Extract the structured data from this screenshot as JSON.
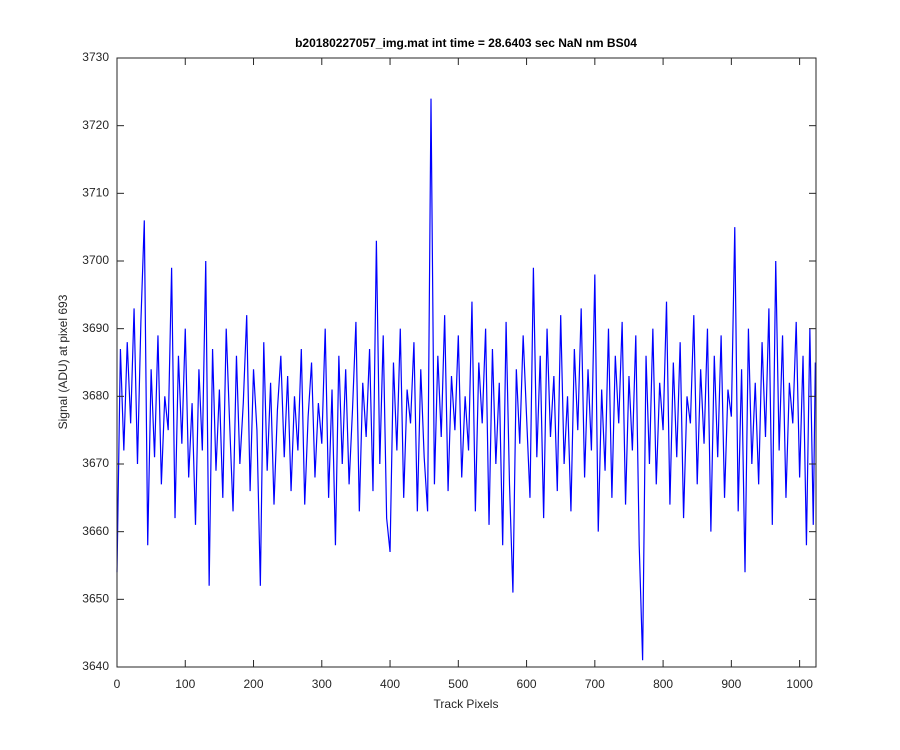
{
  "chart_data": {
    "type": "line",
    "title": "b20180227057_img.mat int time = 28.6403 sec  NaN nm BS04",
    "xlabel": "Track Pixels",
    "ylabel": "Signal (ADU) at pixel 693",
    "x": [
      0,
      5,
      10,
      15,
      20,
      25,
      30,
      35,
      40,
      45,
      50,
      55,
      60,
      65,
      70,
      75,
      80,
      85,
      90,
      95,
      100,
      105,
      110,
      115,
      120,
      125,
      130,
      135,
      140,
      145,
      150,
      155,
      160,
      165,
      170,
      175,
      180,
      185,
      190,
      195,
      200,
      205,
      210,
      215,
      220,
      225,
      230,
      235,
      240,
      245,
      250,
      255,
      260,
      265,
      270,
      275,
      280,
      285,
      290,
      295,
      300,
      305,
      310,
      315,
      320,
      325,
      330,
      335,
      340,
      345,
      350,
      355,
      360,
      365,
      370,
      375,
      380,
      385,
      390,
      395,
      400,
      405,
      410,
      415,
      420,
      425,
      430,
      435,
      440,
      445,
      450,
      455,
      460,
      465,
      470,
      475,
      480,
      485,
      490,
      495,
      500,
      505,
      510,
      515,
      520,
      525,
      530,
      535,
      540,
      545,
      550,
      555,
      560,
      565,
      570,
      575,
      580,
      585,
      590,
      595,
      600,
      605,
      610,
      615,
      620,
      625,
      630,
      635,
      640,
      645,
      650,
      655,
      660,
      665,
      670,
      675,
      680,
      685,
      690,
      695,
      700,
      705,
      710,
      715,
      720,
      725,
      730,
      735,
      740,
      745,
      750,
      755,
      760,
      765,
      770,
      775,
      780,
      785,
      790,
      795,
      800,
      805,
      810,
      815,
      820,
      825,
      830,
      835,
      840,
      845,
      850,
      855,
      860,
      865,
      870,
      875,
      880,
      885,
      890,
      895,
      900,
      905,
      910,
      915,
      920,
      925,
      930,
      935,
      940,
      945,
      950,
      955,
      960,
      965,
      970,
      975,
      980,
      985,
      990,
      995,
      1000,
      1005,
      1010,
      1015,
      1020,
      1023
    ],
    "series": [
      {
        "name": "signal",
        "color": "#0000ff",
        "values": [
          3654,
          3687,
          3672,
          3688,
          3676,
          3693,
          3670,
          3691,
          3706,
          3658,
          3684,
          3671,
          3689,
          3667,
          3680,
          3675,
          3699,
          3662,
          3686,
          3673,
          3690,
          3668,
          3679,
          3661,
          3684,
          3672,
          3700,
          3652,
          3687,
          3669,
          3681,
          3665,
          3690,
          3676,
          3663,
          3686,
          3670,
          3679,
          3692,
          3666,
          3684,
          3675,
          3652,
          3688,
          3669,
          3682,
          3664,
          3678,
          3686,
          3671,
          3683,
          3666,
          3680,
          3672,
          3687,
          3664,
          3677,
          3685,
          3668,
          3679,
          3673,
          3690,
          3665,
          3681,
          3658,
          3686,
          3670,
          3684,
          3667,
          3678,
          3691,
          3663,
          3682,
          3674,
          3687,
          3666,
          3703,
          3670,
          3689,
          3662,
          3657,
          3685,
          3672,
          3690,
          3665,
          3681,
          3676,
          3688,
          3663,
          3684,
          3671,
          3663,
          3724,
          3667,
          3686,
          3674,
          3692,
          3666,
          3683,
          3675,
          3689,
          3668,
          3680,
          3672,
          3694,
          3663,
          3685,
          3676,
          3690,
          3661,
          3687,
          3670,
          3682,
          3658,
          3691,
          3667,
          3651,
          3684,
          3673,
          3689,
          3677,
          3665,
          3699,
          3671,
          3686,
          3662,
          3690,
          3674,
          3683,
          3666,
          3692,
          3670,
          3680,
          3663,
          3687,
          3675,
          3693,
          3668,
          3684,
          3672,
          3698,
          3660,
          3681,
          3669,
          3690,
          3665,
          3686,
          3676,
          3691,
          3664,
          3683,
          3672,
          3689,
          3658,
          3641,
          3686,
          3670,
          3690,
          3667,
          3682,
          3675,
          3694,
          3664,
          3685,
          3671,
          3688,
          3662,
          3680,
          3676,
          3692,
          3667,
          3684,
          3673,
          3690,
          3660,
          3686,
          3671,
          3689,
          3665,
          3681,
          3677,
          3705,
          3663,
          3684,
          3654,
          3690,
          3670,
          3682,
          3667,
          3688,
          3674,
          3693,
          3661,
          3700,
          3672,
          3689,
          3665,
          3682,
          3676,
          3691,
          3668,
          3686,
          3658,
          3690,
          3661,
          3685
        ]
      }
    ],
    "xlim": [
      0,
      1024
    ],
    "ylim": [
      3640,
      3730
    ],
    "xticks": [
      0,
      100,
      200,
      300,
      400,
      500,
      600,
      700,
      800,
      900,
      1000
    ],
    "yticks": [
      3640,
      3650,
      3660,
      3670,
      3680,
      3690,
      3700,
      3710,
      3720,
      3730
    ]
  }
}
